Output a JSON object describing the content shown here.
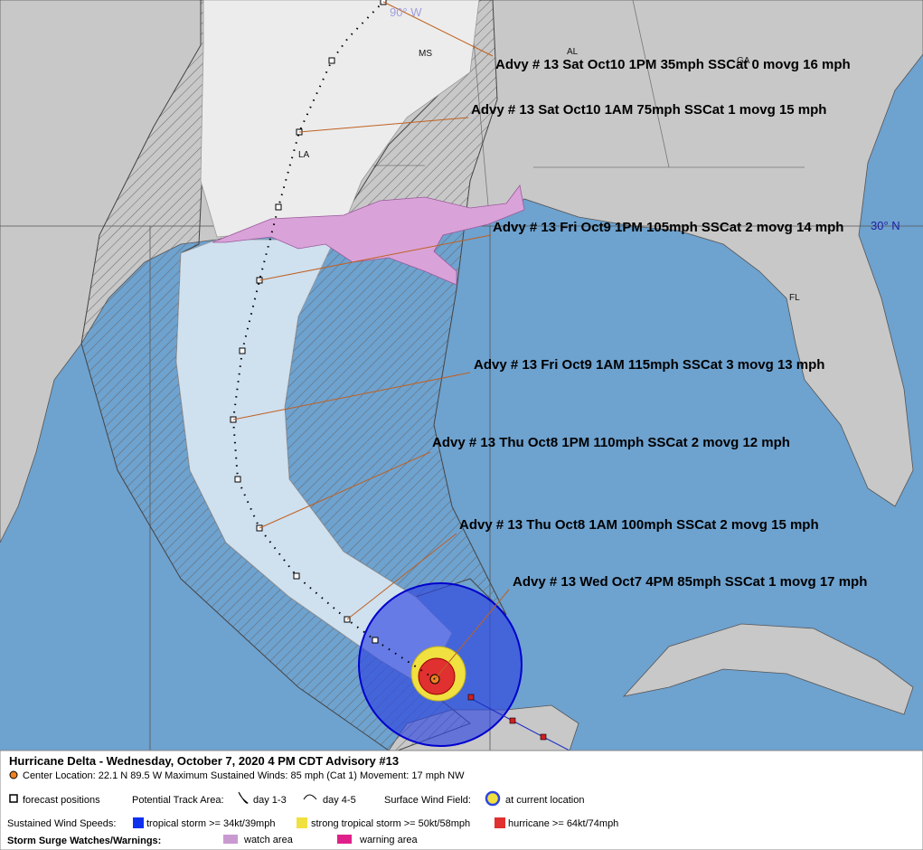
{
  "map": {
    "grid_labels": {
      "lon": "90° W",
      "lat": "30° N"
    },
    "states": [
      "MS",
      "AL",
      "GA",
      "LA",
      "FL"
    ],
    "advisories": [
      "Advy # 13 Sat Oct10 1PM  35mph SSCat 0 movg 16 mph",
      "Advy # 13 Sat Oct10 1AM  75mph SSCat 1 movg 15 mph",
      "Advy # 13 Fri Oct9 1PM  105mph SSCat 2 movg 14 mph",
      "Advy # 13 Fri Oct9 1AM  115mph SSCat 3 movg 13 mph",
      "Advy # 13 Thu Oct8 1PM  110mph SSCat 2 movg 12 mph",
      "Advy # 13 Thu Oct8 1AM  100mph SSCat 2 movg 15 mph",
      "Advy # 13 Wed Oct7 4PM  85mph SSCat 1 movg 17 mph"
    ]
  },
  "legend": {
    "title": "Hurricane Delta  -  Wednesday, October 7, 2020  4 PM CDT   Advisory #13",
    "center": "Center Location: 22.1 N  89.5 W   Maximum Sustained Winds: 85 mph (Cat 1) Movement: 17 mph NW",
    "forecast": "forecast positions",
    "track_area": "Potential Track Area:",
    "day13": "day 1-3",
    "day45": "day 4-5",
    "wind_field": "Surface Wind Field:",
    "current": "at current location",
    "speeds": "Sustained Wind Speeds:",
    "ts": "tropical storm >= 34kt/39mph",
    "sts": "strong tropical storm >= 50kt/58mph",
    "hu": "hurricane >= 64kt/74mph",
    "surge": "Storm Surge Watches/Warnings:",
    "watch": "watch area",
    "warning": "warning area"
  }
}
